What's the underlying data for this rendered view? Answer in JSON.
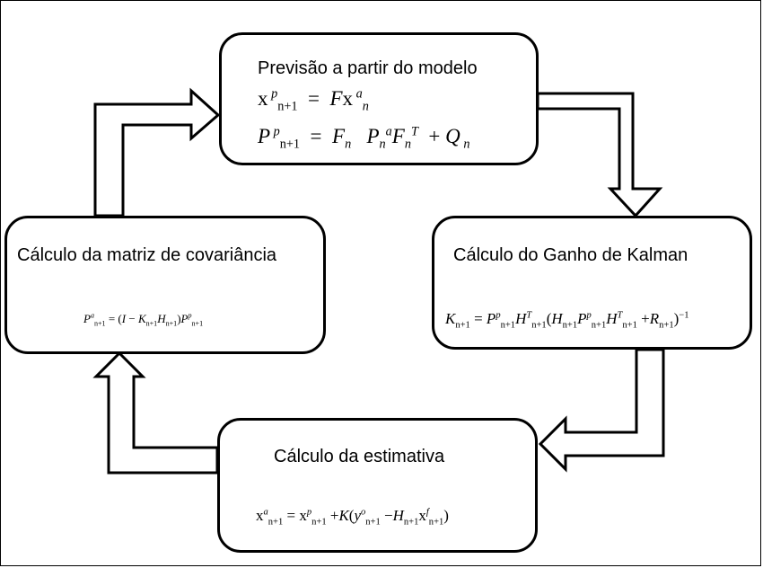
{
  "diagram": {
    "box_prediction": {
      "title": "Previsão a partir do modelo"
    },
    "box_kalman_gain": {
      "title": "Cálculo do Ganho de Kalman"
    },
    "box_estimate": {
      "title": "Cálculo da estimativa"
    },
    "box_covariance": {
      "title": "Cálculo da matriz de covariância"
    },
    "equations": {
      "state_forecast": "x^p_{n+1} = F x^a_n",
      "covariance_forecast": "P^p_{n+1} = F_n P^a_n F^T_n + Q_n",
      "kalman_gain": "K_{n+1} = P^p_{n+1} H^T_{n+1} (H_{n+1} P^p_{n+1} H^T_{n+1} + R_{n+1})^{-1}",
      "analysis_state": "x^a_{n+1} = x^p_{n+1} + K(y^o_{n+1} - H_{n+1} x^f_{n+1})",
      "analysis_covariance": "P^a_{n+1} = (I - K_{n+1} H_{n+1}) P^p_{n+1}"
    },
    "flow": [
      "box_prediction",
      "box_kalman_gain",
      "box_estimate",
      "box_covariance",
      "box_prediction"
    ],
    "colors": {
      "stroke": "#000000",
      "fill": "#ffffff"
    }
  }
}
